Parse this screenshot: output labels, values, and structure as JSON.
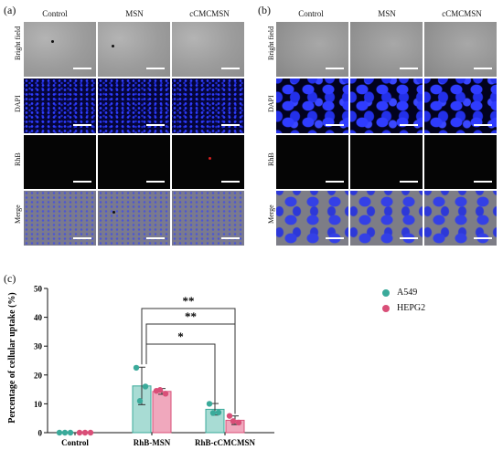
{
  "panel_a": {
    "letter": "(a)",
    "columns": [
      "Control",
      "MSN",
      "cCMCMSN"
    ],
    "rows": [
      "Bright field",
      "DAPI",
      "RhB",
      "Merge"
    ]
  },
  "panel_b": {
    "letter": "(b)",
    "columns": [
      "Control",
      "MSN",
      "cCMCMSN"
    ],
    "rows": [
      "Bright field",
      "DAPI",
      "RhB",
      "Merge"
    ]
  },
  "panel_c": {
    "letter": "(c)"
  },
  "colors": {
    "a549": "#3aaa9a",
    "hepg2": "#d94f78",
    "a549_fill": "#a8dcd4",
    "hepg2_fill": "#f0a8bd"
  },
  "chart_data": {
    "type": "bar",
    "ylabel": "Percentage of  cellular uptake (%)",
    "ylim": [
      0,
      50
    ],
    "yticks": [
      0,
      10,
      20,
      30,
      40,
      50
    ],
    "categories": [
      "Control",
      "RhB-MSN",
      "RhB-cCMCMSN"
    ],
    "series": [
      {
        "name": "A549",
        "values": [
          0,
          16.2,
          8.1
        ],
        "errors": [
          0,
          6.5,
          2.0
        ],
        "points": [
          [
            0,
            0,
            0
          ],
          [
            22.5,
            16.0,
            11.0
          ],
          [
            10.0,
            7.0,
            6.8
          ]
        ]
      },
      {
        "name": "HEPG2",
        "values": [
          0,
          14.3,
          4.3
        ],
        "errors": [
          0,
          1.0,
          1.5
        ],
        "points": [
          [
            0,
            0,
            0
          ],
          [
            14.5,
            13.5,
            14.8
          ],
          [
            5.8,
            3.5,
            4.0
          ]
        ]
      }
    ],
    "significance": [
      "**",
      "**",
      "*"
    ]
  }
}
